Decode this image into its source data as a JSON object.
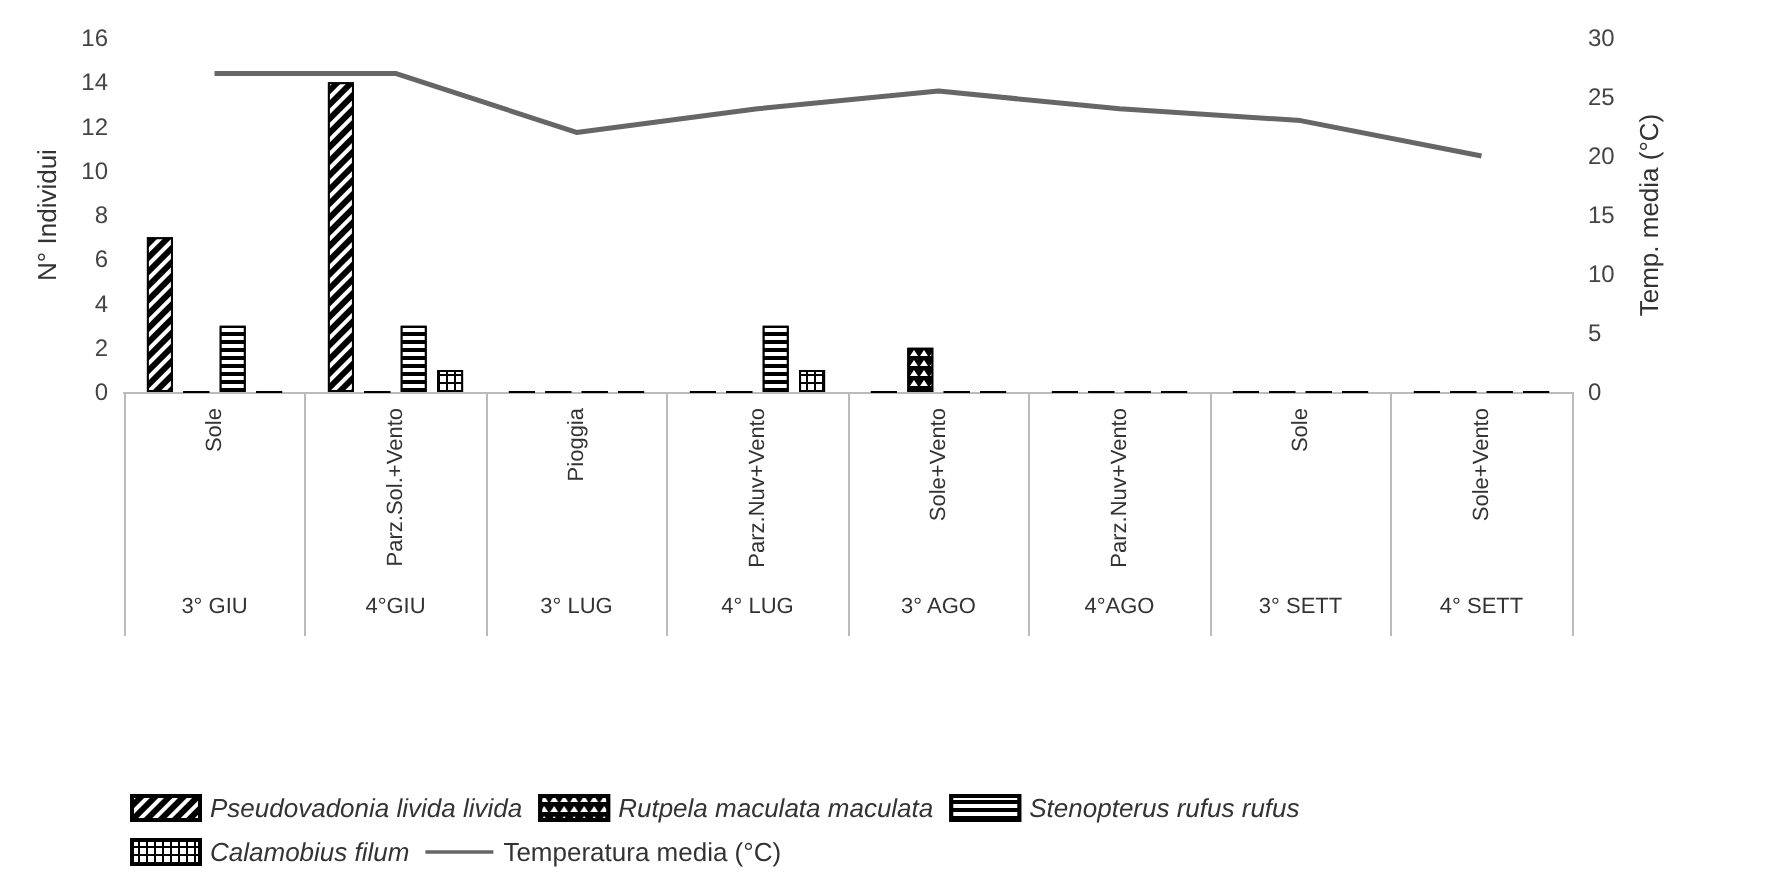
{
  "chart_data": {
    "type": "bar",
    "categories": [
      "Sole",
      "Parz.Sol.+Vento",
      "Pioggia",
      "Parz.Nuv+Vento",
      "Sole+Vento",
      "Parz.Nuv+Vento",
      "Sole",
      "Sole+Vento"
    ],
    "annotations": [
      "3° GIU",
      "4°GIU",
      "3° LUG",
      "4° LUG",
      "3° AGO",
      "4°AGO",
      "3° SETT",
      "4° SETT"
    ],
    "series": [
      {
        "name": "Pseudovadonia livida livida",
        "color": "#000000",
        "values": [
          7,
          14,
          0,
          0,
          0,
          0,
          0,
          0
        ]
      },
      {
        "name": "Rutpela maculata maculata",
        "color": "#000000",
        "values": [
          0,
          0,
          0,
          0,
          2,
          0,
          0,
          0
        ]
      },
      {
        "name": "Stenopterus rufus rufus",
        "color": "#000000",
        "values": [
          3,
          3,
          0,
          3,
          0,
          0,
          0,
          0
        ]
      },
      {
        "name": "Calamobius filum",
        "color": "#000000",
        "values": [
          0,
          1,
          0,
          1,
          0,
          0,
          0,
          0
        ]
      },
      {
        "name": "Temperatura media (°C)",
        "type": "line",
        "axis": "y2",
        "color": "#666666",
        "values": [
          27,
          27,
          22,
          24,
          25.5,
          24,
          23,
          20
        ]
      }
    ],
    "ylabel": "N° Individui",
    "y2label": "Temp. media (°C)",
    "ylim": [
      0,
      16
    ],
    "yticks": [
      0,
      2,
      4,
      6,
      8,
      10,
      12,
      14,
      16
    ],
    "y2lim": [
      0,
      30
    ],
    "y2ticks": [
      0,
      5,
      10,
      15,
      20,
      25,
      30
    ],
    "grid": false,
    "legend": "bottom",
    "marker": "none",
    "line_style": "solid"
  }
}
